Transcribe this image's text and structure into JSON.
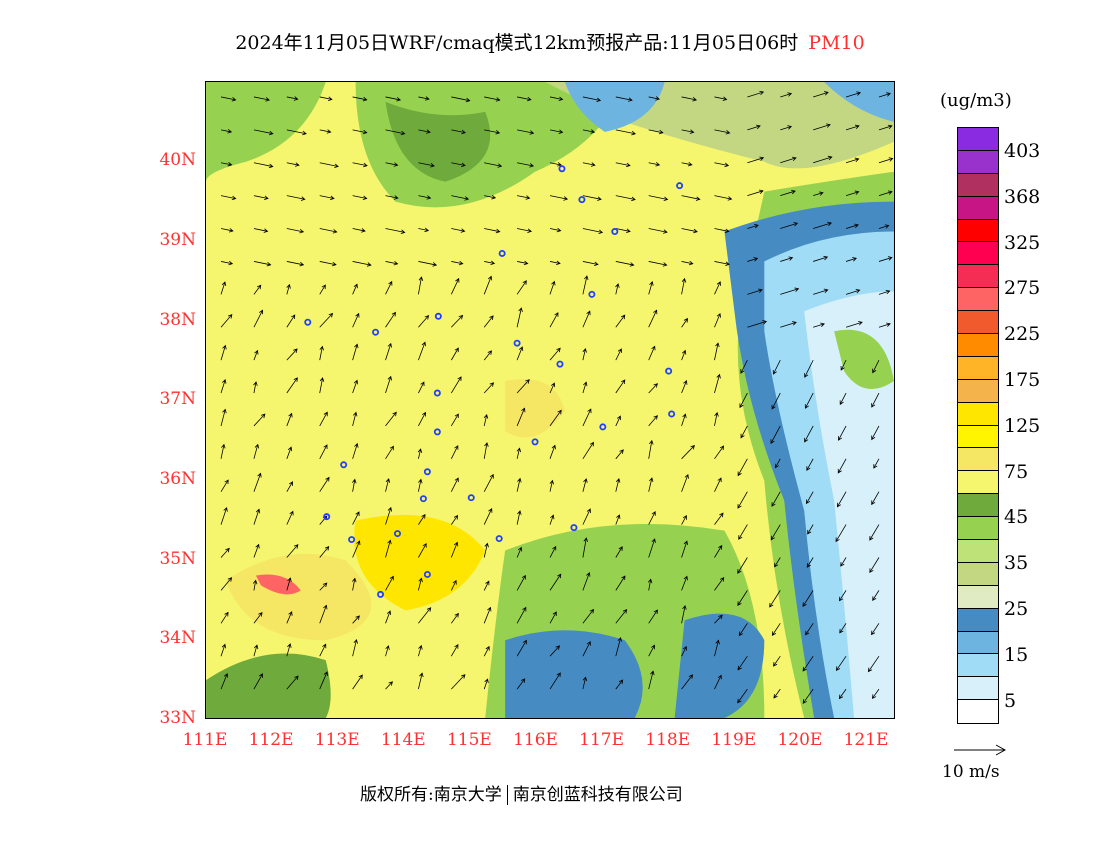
{
  "title": {
    "main": "2024年11月05日WRF/cmaq模式12km预报产品:11月05日06时",
    "species": "PM10"
  },
  "axes": {
    "lat_labels": [
      "33N",
      "34N",
      "35N",
      "36N",
      "37N",
      "38N",
      "39N",
      "40N"
    ],
    "lon_labels": [
      "111E",
      "112E",
      "113E",
      "114E",
      "115E",
      "116E",
      "117E",
      "118E",
      "119E",
      "120E",
      "121E"
    ]
  },
  "legend": {
    "unit": "(ug/m3)",
    "colors": [
      "#8a2be2",
      "#9932cc",
      "#b03060",
      "#c71585",
      "#ff0000",
      "#ff0050",
      "#f52d55",
      "#ff6464",
      "#f05a2d",
      "#ff8c00",
      "#ffb428",
      "#f5b44b",
      "#ffe600",
      "#fff500",
      "#f5e664",
      "#f5f56e",
      "#6eaa3c",
      "#96d250",
      "#bee178",
      "#c3d782",
      "#e1ebc3",
      "#468cc3",
      "#6eb4e1",
      "#a0dcf5",
      "#d7f0fa",
      "#ffffff"
    ],
    "labels": [
      "403",
      "368",
      "325",
      "275",
      "225",
      "175",
      "125",
      "75",
      "45",
      "35",
      "25",
      "15",
      "5"
    ],
    "wind_ref": "10 m/s"
  },
  "footer": {
    "left": "版权所有:南京大学",
    "right": "南京创蓝科技有限公司"
  }
}
